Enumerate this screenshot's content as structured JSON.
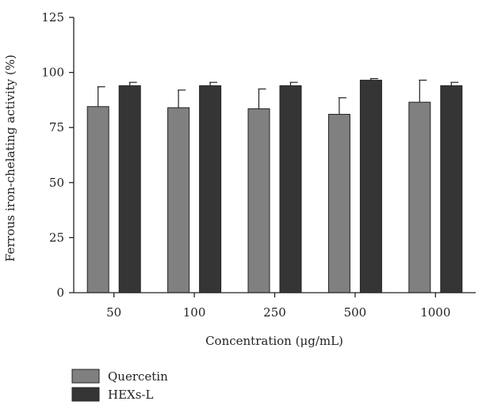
{
  "chart_data": {
    "type": "bar",
    "title": "",
    "xlabel": "Concentration (μg/mL)",
    "ylabel": "Ferrous iron-chelating activity (%)",
    "ylim": [
      0,
      125
    ],
    "yticks": [
      "0",
      "25",
      "50",
      "75",
      "100",
      "125"
    ],
    "categories": [
      "50",
      "100",
      "250",
      "500",
      "1000"
    ],
    "series": [
      {
        "name": "Quercetin",
        "color": "#808080",
        "values": [
          84.5,
          84,
          83.5,
          81,
          86.5
        ],
        "errors": [
          9,
          8,
          9,
          7.5,
          10
        ]
      },
      {
        "name": "HEXs-L",
        "color": "#353535",
        "values": [
          94,
          94,
          94,
          96.5,
          94
        ],
        "errors": [
          1.5,
          1.5,
          1.5,
          0.7,
          1.5
        ]
      }
    ],
    "legend_position": "bottom-left"
  }
}
